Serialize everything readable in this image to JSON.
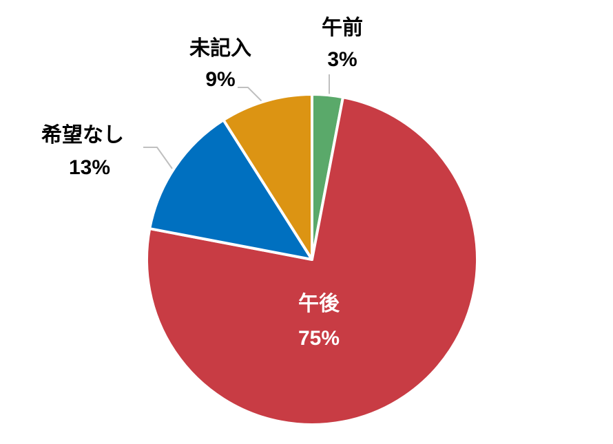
{
  "chart_data": {
    "type": "pie",
    "categories": [
      "午前",
      "午後",
      "希望なし",
      "未記入"
    ],
    "values": [
      3,
      75,
      13,
      9
    ],
    "value_labels": [
      "3%",
      "75%",
      "13%",
      "9%"
    ],
    "colors": [
      "#5aa96a",
      "#c83c44",
      "#0070c0",
      "#dc9413"
    ]
  }
}
